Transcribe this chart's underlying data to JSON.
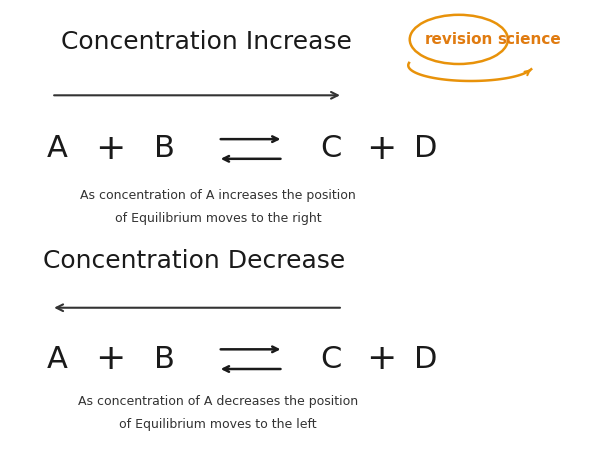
{
  "bg_color": "#ffffff",
  "title1": "Concentration Increase",
  "title2": "Concentration Decrease",
  "title_fontsize": 18,
  "title_color": "#1a1a1a",
  "equation_color": "#1a1a1a",
  "equation_fontsize": 22,
  "plus_fontsize": 26,
  "note_fontsize": 9,
  "note_color": "#333333",
  "note1_line1": "As concentration of A increases the position",
  "note1_line2": "of Equilibrium moves to the right",
  "note2_line1": "As concentration of A decreases the position",
  "note2_line2": "of Equilibrium moves to the left",
  "logo_text_color": "#e07b10",
  "logo_oval_color": "#e8920a",
  "logo_fontsize": 11,
  "arrow_color": "#333333"
}
